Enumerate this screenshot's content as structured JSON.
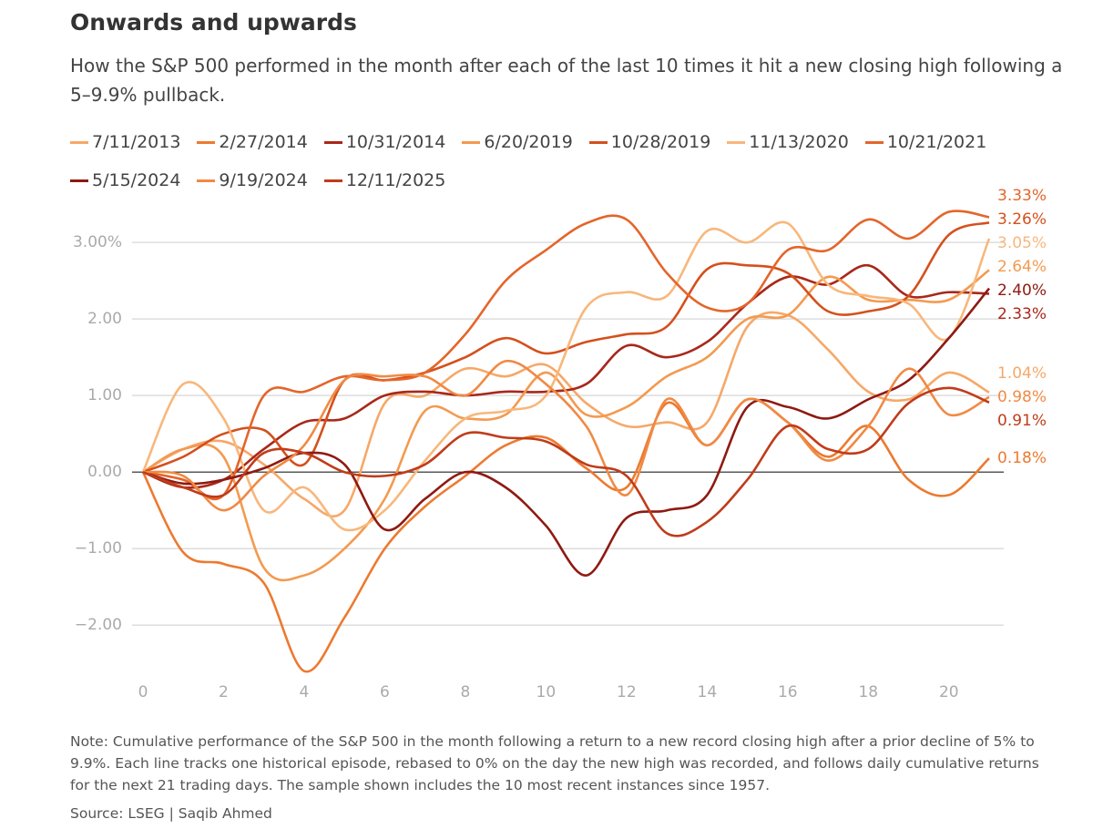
{
  "chart_data": {
    "type": "line",
    "title": "Onwards and upwards",
    "subtitle": "How the S&P 500 performed in the month after each of the last 10 times it hit a new closing high following a 5–9.9% pullback.",
    "note": "Note: Cumulative performance of the S&P 500 in the month following a return to a new record closing high after a prior decline of 5% to 9.9%. Each line tracks one historical episode, rebased to 0% on the day the new high was recorded, and follows daily cumulative returns for the next 21 trading days. The sample shown includes the 10 most recent instances since 1957.",
    "source": "Source: LSEG | Saqib Ahmed",
    "x": [
      0,
      1,
      2,
      3,
      4,
      5,
      6,
      7,
      8,
      9,
      10,
      11,
      12,
      13,
      14,
      15,
      16,
      17,
      18,
      19,
      20,
      21
    ],
    "xlim": [
      0,
      21
    ],
    "xticks": [
      0,
      2,
      4,
      6,
      8,
      10,
      12,
      14,
      16,
      18,
      20
    ],
    "ylim": [
      -2.64,
      3.43
    ],
    "yticks": [
      {
        "value": -2,
        "label": "−2.00"
      },
      {
        "value": -1,
        "label": "−1.00"
      },
      {
        "value": 0,
        "label": "0.00"
      },
      {
        "value": 1,
        "label": "1.00"
      },
      {
        "value": 2,
        "label": "2.00"
      },
      {
        "value": 3,
        "label": "3.00%"
      }
    ],
    "grid": true,
    "series": [
      {
        "name": "7/11/2013",
        "color": "#f6a868",
        "values": [
          0,
          0.3,
          0.4,
          0.1,
          -0.35,
          -0.5,
          0.9,
          1.0,
          1.35,
          1.25,
          1.4,
          0.9,
          0.6,
          0.65,
          0.65,
          1.9,
          2.05,
          1.6,
          1.05,
          0.95,
          1.3,
          1.04
        ],
        "value_labels": [
          null,
          null,
          null,
          null,
          null,
          null,
          null,
          null,
          null,
          null,
          null,
          null,
          null,
          null,
          null,
          null,
          null,
          null,
          null,
          null,
          null,
          "1.04%"
        ]
      },
      {
        "name": "2/27/2014",
        "color": "#ec7a30",
        "values": [
          0,
          -1.05,
          -1.2,
          -1.45,
          -2.6,
          -1.9,
          -1.0,
          -0.45,
          -0.05,
          0.35,
          0.45,
          0.05,
          -0.2,
          0.9,
          0.35,
          0.95,
          0.65,
          0.2,
          0.6,
          -0.1,
          -0.3,
          0.18
        ],
        "value_labels": [
          null,
          null,
          null,
          null,
          null,
          null,
          null,
          null,
          null,
          null,
          null,
          null,
          null,
          null,
          null,
          null,
          null,
          null,
          null,
          null,
          null,
          "0.18%"
        ]
      },
      {
        "name": "10/31/2014",
        "color": "#a8281a",
        "values": [
          0,
          -0.2,
          -0.1,
          0.3,
          0.65,
          0.7,
          1.0,
          1.05,
          1.0,
          1.05,
          1.05,
          1.15,
          1.65,
          1.5,
          1.7,
          2.2,
          2.55,
          2.45,
          2.7,
          2.3,
          2.35,
          2.33
        ],
        "value_labels": [
          null,
          null,
          null,
          null,
          null,
          null,
          null,
          null,
          null,
          null,
          null,
          null,
          null,
          null,
          null,
          null,
          null,
          null,
          null,
          null,
          null,
          "2.33%"
        ]
      },
      {
        "name": "6/20/2019",
        "color": "#f39a50",
        "values": [
          0,
          0.3,
          0.2,
          -1.25,
          -1.35,
          -1.0,
          -0.35,
          0.8,
          0.7,
          0.75,
          1.3,
          0.75,
          0.85,
          1.25,
          1.5,
          2.0,
          2.05,
          2.55,
          2.25,
          2.25,
          2.25,
          2.64
        ],
        "value_labels": [
          null,
          null,
          null,
          null,
          null,
          null,
          null,
          null,
          null,
          null,
          null,
          null,
          null,
          null,
          null,
          null,
          null,
          null,
          null,
          null,
          null,
          "2.64%"
        ]
      },
      {
        "name": "10/28/2019",
        "color": "#d4501c",
        "values": [
          0,
          0.2,
          0.5,
          0.55,
          0.1,
          1.2,
          1.2,
          1.3,
          1.5,
          1.75,
          1.55,
          1.7,
          1.8,
          1.9,
          2.65,
          2.7,
          2.6,
          2.1,
          2.1,
          2.3,
          3.1,
          3.26
        ],
        "value_labels": [
          null,
          null,
          null,
          null,
          null,
          null,
          null,
          null,
          null,
          null,
          null,
          null,
          null,
          null,
          null,
          null,
          null,
          null,
          null,
          null,
          null,
          "3.26%"
        ]
      },
      {
        "name": "11/13/2020",
        "color": "#f8b77c",
        "values": [
          0,
          1.15,
          0.7,
          -0.5,
          -0.2,
          -0.75,
          -0.5,
          0.15,
          0.7,
          0.8,
          1.0,
          2.15,
          2.35,
          2.3,
          3.15,
          3.0,
          3.25,
          2.45,
          2.3,
          2.2,
          1.75,
          3.05
        ],
        "value_labels": [
          null,
          null,
          null,
          null,
          null,
          null,
          null,
          null,
          null,
          null,
          null,
          null,
          null,
          null,
          null,
          null,
          null,
          null,
          null,
          null,
          null,
          "3.05%"
        ]
      },
      {
        "name": "10/21/2021",
        "color": "#e4652a",
        "values": [
          0,
          -0.1,
          -0.3,
          1.0,
          1.05,
          1.25,
          1.2,
          1.3,
          1.8,
          2.5,
          2.9,
          3.25,
          3.3,
          2.6,
          2.15,
          2.2,
          2.9,
          2.9,
          3.3,
          3.05,
          3.4,
          3.33
        ],
        "value_labels": [
          null,
          null,
          null,
          null,
          null,
          null,
          null,
          null,
          null,
          null,
          null,
          null,
          null,
          null,
          null,
          null,
          null,
          null,
          null,
          null,
          null,
          "3.33%"
        ]
      },
      {
        "name": "5/15/2024",
        "color": "#8e1a12",
        "values": [
          0,
          -0.15,
          -0.1,
          0.05,
          0.25,
          0.1,
          -0.75,
          -0.35,
          0.0,
          -0.2,
          -0.7,
          -1.35,
          -0.6,
          -0.5,
          -0.3,
          0.85,
          0.85,
          0.7,
          0.95,
          1.2,
          1.75,
          2.4
        ],
        "value_labels": [
          null,
          null,
          null,
          null,
          null,
          null,
          null,
          null,
          null,
          null,
          null,
          null,
          null,
          null,
          null,
          null,
          null,
          null,
          null,
          null,
          null,
          "2.40%"
        ]
      },
      {
        "name": "9/19/2024",
        "color": "#f08a44",
        "values": [
          0,
          -0.05,
          -0.5,
          -0.05,
          0.35,
          1.2,
          1.25,
          1.25,
          1.0,
          1.45,
          1.15,
          0.6,
          -0.3,
          0.95,
          0.35,
          0.95,
          0.65,
          0.15,
          0.6,
          1.35,
          0.75,
          0.98
        ],
        "value_labels": [
          null,
          null,
          null,
          null,
          null,
          null,
          null,
          null,
          null,
          null,
          null,
          null,
          null,
          null,
          null,
          null,
          null,
          null,
          null,
          null,
          null,
          "0.98%"
        ]
      },
      {
        "name": "12/11/2025",
        "color": "#c03c1a",
        "values": [
          0,
          -0.2,
          -0.3,
          0.25,
          0.25,
          0,
          -0.05,
          0.1,
          0.5,
          0.45,
          0.4,
          0.1,
          -0.05,
          -0.8,
          -0.65,
          -0.1,
          0.6,
          0.3,
          0.3,
          0.9,
          1.1,
          0.91
        ],
        "value_labels": [
          null,
          null,
          null,
          null,
          null,
          null,
          null,
          null,
          null,
          null,
          null,
          null,
          null,
          null,
          null,
          null,
          null,
          null,
          null,
          null,
          null,
          "0.91%"
        ]
      }
    ]
  }
}
